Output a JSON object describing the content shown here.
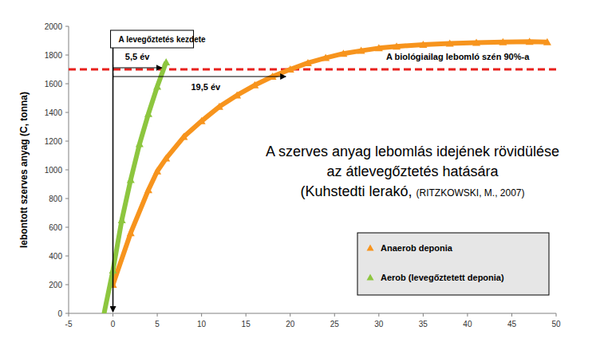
{
  "chart_data": {
    "type": "line",
    "title": [
      "A szerves anyag lebomlás idejének rövidülése",
      "az átlevegőztetés hatására"
    ],
    "subtitle": {
      "main": "(Kuhstedti lerakó,",
      "source": "(RITZKOWSKI, M., 2007)"
    },
    "y_label": "lebontott szerves anyag (C, tonna)",
    "xlim": [
      -5,
      50
    ],
    "xticks": [
      -5,
      0,
      5,
      10,
      15,
      20,
      25,
      30,
      35,
      40,
      45,
      50
    ],
    "ylim": [
      0,
      2000
    ],
    "yticks": [
      0,
      200,
      400,
      600,
      800,
      1000,
      1200,
      1400,
      1600,
      1800,
      2000
    ],
    "grid": false,
    "legend": "lower right",
    "series": [
      {
        "name": "Anaerob deponia",
        "color": "#f7941d",
        "marker": "triangle",
        "x": [
          0,
          2,
          4,
          5,
          6,
          8,
          10,
          12,
          14,
          16,
          18,
          20,
          22,
          24,
          26,
          28,
          30,
          32,
          35,
          38,
          41,
          44,
          47,
          49
        ],
        "values": [
          200,
          560,
          860,
          990,
          1080,
          1230,
          1340,
          1440,
          1520,
          1590,
          1650,
          1700,
          1745,
          1780,
          1810,
          1830,
          1848,
          1860,
          1872,
          1880,
          1886,
          1890,
          1893,
          1890
        ]
      },
      {
        "name": "Aerob (levegőztetett deponia)",
        "color": "#8dc63f",
        "marker": "triangle",
        "x": [
          -1,
          0,
          1,
          2,
          3,
          4,
          5,
          6
        ],
        "values": [
          0,
          300,
          650,
          930,
          1180,
          1390,
          1580,
          1750
        ]
      }
    ],
    "reference_lines": [
      {
        "y": 1700,
        "label": "A biológiailag lebomló szén 90%-a",
        "color": "#e8201c",
        "line_style": "dashed"
      }
    ],
    "annotations": [
      {
        "text": "A levegőztetés kezdete",
        "x": 0
      },
      {
        "text": "5,5 év",
        "x0": 0,
        "x1": 5.5
      },
      {
        "text": "19,5 év",
        "x0": 0,
        "x1": 19.5
      }
    ]
  }
}
